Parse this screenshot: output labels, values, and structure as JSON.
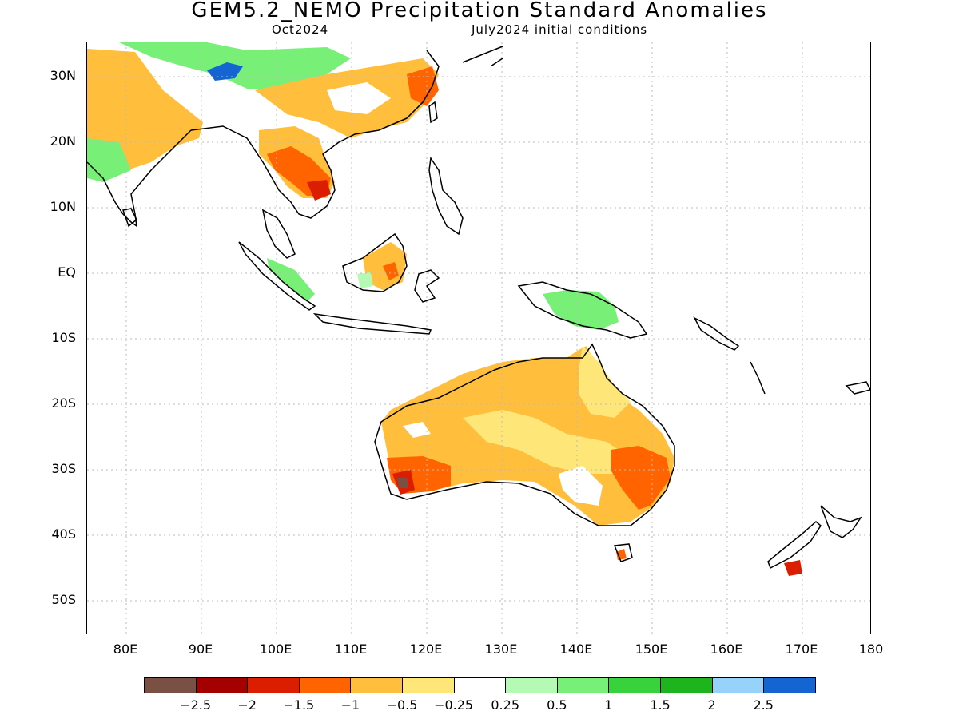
{
  "title": "GEM5.2_NEMO Precipitation Standard Anomalies",
  "subtitle_left": "Oct2024",
  "subtitle_right": "July2024 initial conditions",
  "lat_labels": [
    "30N",
    "20N",
    "10N",
    "EQ",
    "10S",
    "20S",
    "30S",
    "40S",
    "50S"
  ],
  "lon_labels": [
    "80E",
    "90E",
    "100E",
    "110E",
    "120E",
    "130E",
    "140E",
    "150E",
    "160E",
    "170E",
    "180"
  ],
  "colorbar": {
    "colors": [
      "#7a5044",
      "#a50000",
      "#dc1e00",
      "#ff6400",
      "#ffbe3c",
      "#ffe678",
      "#ffffff",
      "#b4fab4",
      "#78f078",
      "#37d23c",
      "#1eb41e",
      "#96d2fa",
      "#1464d2"
    ],
    "labels": [
      "-2.5",
      "-2",
      "-1.5",
      "-1",
      "-0.5",
      "-0.25",
      "0.25",
      "0.5",
      "1",
      "1.5",
      "2",
      "2.5"
    ]
  }
}
